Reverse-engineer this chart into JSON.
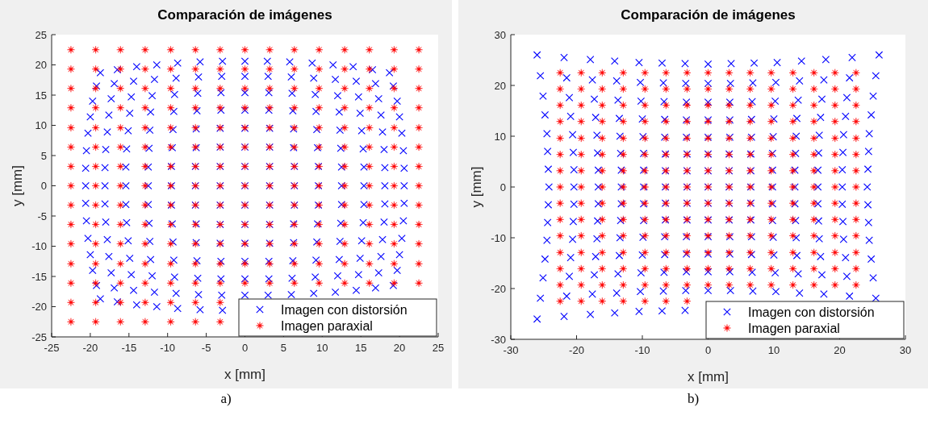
{
  "chart_data": [
    {
      "type": "scatter",
      "title": "Comparación de imágenes",
      "xlabel": "x [mm]",
      "ylabel": "y [mm]",
      "xlim": [
        -25,
        25
      ],
      "ylim": [
        -25,
        25
      ],
      "xticks": [
        -25,
        -20,
        -15,
        -10,
        -5,
        0,
        5,
        10,
        15,
        20,
        25
      ],
      "yticks": [
        -25,
        -20,
        -15,
        -10,
        -5,
        0,
        5,
        10,
        15,
        20,
        25
      ],
      "legend": "bottom right",
      "annotations": [
        "a)"
      ],
      "series": [
        {
          "name": "Imagen con distorsión",
          "color": "#0000ff",
          "marker": "cross",
          "x": [
            -18.7,
            -16.5,
            -14.0,
            -11.4,
            -8.7,
            -5.8,
            -2.9,
            0,
            2.9,
            5.8,
            8.7,
            11.4,
            14.0,
            16.5,
            18.7,
            -19.2,
            -16.9,
            -14.4,
            -11.7,
            -8.9,
            -6.0,
            -3.0,
            0,
            3.0,
            6.0,
            8.9,
            11.7,
            14.4,
            16.9,
            19.2,
            -19.7,
            -17.3,
            -14.7,
            -12.0,
            -9.1,
            -6.1,
            -3.1,
            0,
            3.1,
            6.1,
            9.1,
            12.0,
            14.7,
            17.3,
            19.7,
            -20.0,
            -17.6,
            -14.9,
            -12.2,
            -9.2,
            -6.2,
            -3.1,
            0,
            3.1,
            6.2,
            9.2,
            12.2,
            14.9,
            17.6,
            20.0,
            -20.3,
            -17.8,
            -15.1,
            -12.3,
            -9.3,
            -6.3,
            -3.2,
            0,
            3.2,
            6.3,
            9.3,
            12.3,
            15.1,
            17.8,
            20.3,
            -20.5,
            -18.0,
            -15.3,
            -12.4,
            -9.4,
            -6.3,
            -3.2,
            0,
            3.2,
            6.3,
            9.4,
            12.4,
            15.3,
            18.0,
            20.5,
            -20.6,
            -18.1,
            -15.4,
            -12.5,
            -9.5,
            -6.4,
            -3.2,
            0,
            3.2,
            6.4,
            9.5,
            12.5,
            15.4,
            18.1,
            20.6,
            -20.6,
            -18.1,
            -15.4,
            -12.5,
            -9.5,
            -6.4,
            -3.2,
            0,
            3.2,
            6.4,
            9.5,
            12.5,
            15.4,
            18.1,
            20.6,
            -20.6,
            -18.1,
            -15.4,
            -12.5,
            -9.5,
            -6.4,
            -3.2,
            0,
            3.2,
            6.4,
            9.5,
            12.5,
            15.4,
            18.1,
            20.6,
            -20.5,
            -18.0,
            -15.3,
            -12.4,
            -9.4,
            -6.3,
            -3.2,
            0,
            3.2,
            6.3,
            9.4,
            12.4,
            15.3,
            18.0,
            20.5,
            -20.3,
            -17.8,
            -15.1,
            -12.3,
            -9.3,
            -6.3,
            -3.2,
            0,
            3.2,
            6.3,
            9.3,
            12.3,
            15.1,
            17.8,
            20.3,
            -20.0,
            -17.6,
            -14.9,
            -12.2,
            -9.2,
            -6.2,
            -3.1,
            0,
            3.1,
            6.2,
            9.2,
            12.2,
            14.9,
            17.6,
            20.0,
            -19.7,
            -17.3,
            -14.7,
            -12.0,
            -9.1,
            -6.1,
            -3.1,
            0,
            3.1,
            6.1,
            9.1,
            12.0,
            14.7,
            17.3,
            19.7,
            -19.2,
            -16.9,
            -14.4,
            -11.7,
            -8.9,
            -6.0,
            -3.0,
            0,
            3.0,
            6.0,
            8.9,
            11.7,
            14.4,
            16.9,
            19.2,
            -18.7,
            -16.5,
            -14.0,
            -11.4,
            -8.7,
            -5.8,
            -2.9
          ],
          "values": [
            18.7,
            19.2,
            19.7,
            20.0,
            20.3,
            20.5,
            20.6,
            20.6,
            20.6,
            20.5,
            20.3,
            20.0,
            19.7,
            19.2,
            18.7,
            16.5,
            16.9,
            17.3,
            17.6,
            17.8,
            18.0,
            18.1,
            18.1,
            18.1,
            18.0,
            17.8,
            17.6,
            17.3,
            16.9,
            16.5,
            14.0,
            14.4,
            14.7,
            14.9,
            15.1,
            15.3,
            15.4,
            15.4,
            15.4,
            15.3,
            15.1,
            14.9,
            14.7,
            14.4,
            14.0,
            11.4,
            11.7,
            12.0,
            12.2,
            12.3,
            12.4,
            12.5,
            12.5,
            12.5,
            12.4,
            12.3,
            12.2,
            12.0,
            11.7,
            11.4,
            8.7,
            8.9,
            9.1,
            9.2,
            9.3,
            9.4,
            9.5,
            9.5,
            9.5,
            9.4,
            9.3,
            9.2,
            9.1,
            8.9,
            8.7,
            5.8,
            6.0,
            6.1,
            6.2,
            6.3,
            6.3,
            6.4,
            6.4,
            6.4,
            6.3,
            6.3,
            6.2,
            6.1,
            6.0,
            5.8,
            2.9,
            3.0,
            3.1,
            3.1,
            3.2,
            3.2,
            3.2,
            3.2,
            3.2,
            3.2,
            3.2,
            3.1,
            3.1,
            3.0,
            2.9,
            0,
            0,
            0,
            0,
            0,
            0,
            0,
            0,
            0,
            0,
            0,
            0,
            0,
            0,
            0,
            -2.9,
            -3.0,
            -3.1,
            -3.1,
            -3.2,
            -3.2,
            -3.2,
            -3.2,
            -3.2,
            -3.2,
            -3.2,
            -3.1,
            -3.1,
            -3.0,
            -2.9,
            -5.8,
            -6.0,
            -6.1,
            -6.2,
            -6.3,
            -6.3,
            -6.4,
            -6.4,
            -6.4,
            -6.3,
            -6.3,
            -6.2,
            -6.1,
            -6.0,
            -5.8,
            -8.7,
            -8.9,
            -9.1,
            -9.2,
            -9.3,
            -9.4,
            -9.5,
            -9.5,
            -9.5,
            -9.4,
            -9.3,
            -9.2,
            -9.1,
            -8.9,
            -8.7,
            -11.4,
            -11.7,
            -12.0,
            -12.2,
            -12.3,
            -12.4,
            -12.5,
            -12.5,
            -12.5,
            -12.4,
            -12.3,
            -12.2,
            -12.0,
            -11.7,
            -11.4,
            -14.0,
            -14.4,
            -14.7,
            -14.9,
            -15.1,
            -15.3,
            -15.4,
            -15.4,
            -15.4,
            -15.3,
            -15.1,
            -14.9,
            -14.7,
            -14.4,
            -14.0,
            -16.5,
            -16.9,
            -17.3,
            -17.6,
            -17.8,
            -18.0,
            -18.1,
            -18.1,
            -18.1,
            -18.0,
            -17.8,
            -17.6,
            -17.3,
            -16.9,
            -16.5,
            -18.7,
            -19.2,
            -19.7,
            -20.0,
            -20.3,
            -20.5,
            -20.6
          ]
        },
        {
          "name": "Imagen paraxial",
          "color": "#ff0000",
          "marker": "star",
          "x": [
            -22.5,
            -19.3,
            -16.1,
            -12.9,
            -9.6,
            -6.4,
            -3.2,
            0,
            3.2,
            6.4,
            9.6,
            12.9,
            16.1,
            19.3,
            22.5,
            -22.5,
            -19.3,
            -16.1,
            -12.9,
            -9.6,
            -6.4,
            -3.2,
            0,
            3.2,
            6.4,
            9.6,
            12.9,
            16.1,
            19.3,
            22.5,
            -22.5,
            -19.3,
            -16.1,
            -12.9,
            -9.6,
            -6.4,
            -3.2,
            0,
            3.2,
            6.4,
            9.6,
            12.9,
            16.1,
            19.3,
            22.5,
            -22.5,
            -19.3,
            -16.1,
            -12.9,
            -9.6,
            -6.4,
            -3.2,
            0,
            3.2,
            6.4,
            9.6,
            12.9,
            16.1,
            19.3,
            22.5,
            -22.5,
            -19.3,
            -16.1,
            -12.9,
            -9.6,
            -6.4,
            -3.2,
            0,
            3.2,
            6.4,
            9.6,
            12.9,
            16.1,
            19.3,
            22.5,
            -22.5,
            -19.3,
            -16.1,
            -12.9,
            -9.6,
            -6.4,
            -3.2,
            0,
            3.2,
            6.4,
            9.6,
            12.9,
            16.1,
            19.3,
            22.5,
            -22.5,
            -19.3,
            -16.1,
            -12.9,
            -9.6,
            -6.4,
            -3.2,
            0,
            3.2,
            6.4,
            9.6,
            12.9,
            16.1,
            19.3,
            22.5,
            -22.5,
            -19.3,
            -16.1,
            -12.9,
            -9.6,
            -6.4,
            -3.2,
            0,
            3.2,
            6.4,
            9.6,
            12.9,
            16.1,
            19.3,
            22.5,
            -22.5,
            -19.3,
            -16.1,
            -12.9,
            -9.6,
            -6.4,
            -3.2,
            0,
            3.2,
            6.4,
            9.6,
            12.9,
            16.1,
            19.3,
            22.5,
            -22.5,
            -19.3,
            -16.1,
            -12.9,
            -9.6,
            -6.4,
            -3.2,
            0,
            3.2,
            6.4,
            9.6,
            12.9,
            16.1,
            19.3,
            22.5,
            -22.5,
            -19.3,
            -16.1,
            -12.9,
            -9.6,
            -6.4,
            -3.2,
            0,
            3.2,
            6.4,
            9.6,
            12.9,
            16.1,
            19.3,
            22.5,
            -22.5,
            -19.3,
            -16.1,
            -12.9,
            -9.6,
            -6.4,
            -3.2,
            0,
            3.2,
            6.4,
            9.6,
            12.9,
            16.1,
            19.3,
            22.5,
            -22.5,
            -19.3,
            -16.1,
            -12.9,
            -9.6,
            -6.4,
            -3.2,
            0,
            3.2,
            6.4,
            9.6,
            12.9,
            16.1,
            19.3,
            22.5,
            -22.5,
            -19.3,
            -16.1,
            -12.9,
            -9.6,
            -6.4,
            -3.2,
            -22.5,
            -19.3,
            -16.1,
            -12.9,
            -9.6,
            -6.4,
            -3.2
          ],
          "values": [
            22.5,
            22.5,
            22.5,
            22.5,
            22.5,
            22.5,
            22.5,
            22.5,
            22.5,
            22.5,
            22.5,
            22.5,
            22.5,
            22.5,
            22.5,
            19.3,
            19.3,
            19.3,
            19.3,
            19.3,
            19.3,
            19.3,
            19.3,
            19.3,
            19.3,
            19.3,
            19.3,
            19.3,
            19.3,
            19.3,
            16.1,
            16.1,
            16.1,
            16.1,
            16.1,
            16.1,
            16.1,
            16.1,
            16.1,
            16.1,
            16.1,
            16.1,
            16.1,
            16.1,
            16.1,
            12.9,
            12.9,
            12.9,
            12.9,
            12.9,
            12.9,
            12.9,
            12.9,
            12.9,
            12.9,
            12.9,
            12.9,
            12.9,
            12.9,
            12.9,
            9.6,
            9.6,
            9.6,
            9.6,
            9.6,
            9.6,
            9.6,
            9.6,
            9.6,
            9.6,
            9.6,
            9.6,
            9.6,
            9.6,
            9.6,
            6.4,
            6.4,
            6.4,
            6.4,
            6.4,
            6.4,
            6.4,
            6.4,
            6.4,
            6.4,
            6.4,
            6.4,
            6.4,
            6.4,
            6.4,
            3.2,
            3.2,
            3.2,
            3.2,
            3.2,
            3.2,
            3.2,
            3.2,
            3.2,
            3.2,
            3.2,
            3.2,
            3.2,
            3.2,
            3.2,
            0,
            0,
            0,
            0,
            0,
            0,
            0,
            0,
            0,
            0,
            0,
            0,
            0,
            0,
            0,
            -3.2,
            -3.2,
            -3.2,
            -3.2,
            -3.2,
            -3.2,
            -3.2,
            -3.2,
            -3.2,
            -3.2,
            -3.2,
            -3.2,
            -3.2,
            -3.2,
            -3.2,
            -6.4,
            -6.4,
            -6.4,
            -6.4,
            -6.4,
            -6.4,
            -6.4,
            -6.4,
            -6.4,
            -6.4,
            -6.4,
            -6.4,
            -6.4,
            -6.4,
            -6.4,
            -9.6,
            -9.6,
            -9.6,
            -9.6,
            -9.6,
            -9.6,
            -9.6,
            -9.6,
            -9.6,
            -9.6,
            -9.6,
            -9.6,
            -9.6,
            -9.6,
            -9.6,
            -12.9,
            -12.9,
            -12.9,
            -12.9,
            -12.9,
            -12.9,
            -12.9,
            -12.9,
            -12.9,
            -12.9,
            -12.9,
            -12.9,
            -12.9,
            -12.9,
            -12.9,
            -16.1,
            -16.1,
            -16.1,
            -16.1,
            -16.1,
            -16.1,
            -16.1,
            -16.1,
            -16.1,
            -16.1,
            -16.1,
            -16.1,
            -16.1,
            -16.1,
            -16.1,
            -19.3,
            -19.3,
            -19.3,
            -19.3,
            -19.3,
            -19.3,
            -19.3,
            -22.5,
            -22.5,
            -22.5,
            -22.5,
            -22.5,
            -22.5,
            -22.5
          ]
        }
      ]
    },
    {
      "type": "scatter",
      "title": "Comparación de imágenes",
      "xlabel": "x [mm]",
      "ylabel": "y [mm]",
      "xlim": [
        -30,
        30
      ],
      "ylim": [
        -30,
        30
      ],
      "xticks": [
        -30,
        -20,
        -10,
        0,
        10,
        20,
        30
      ],
      "yticks": [
        -30,
        -20,
        -10,
        0,
        10,
        20,
        30
      ],
      "legend": "bottom right",
      "annotations": [
        "b)"
      ],
      "series": [
        {
          "name": "Imagen con distorsión",
          "color": "#0000ff",
          "marker": "cross",
          "x": [
            -26.0,
            -21.9,
            -17.9,
            -14.2,
            -10.5,
            -7.0,
            -3.5,
            0,
            3.5,
            7.0,
            10.5,
            14.2,
            17.9,
            21.9,
            26.0,
            -25.5,
            -21.5,
            -17.6,
            -13.9,
            -10.3,
            -6.8,
            -3.4,
            0,
            3.4,
            6.8,
            10.3,
            13.9,
            17.6,
            21.5,
            25.5,
            -25.1,
            -21.1,
            -17.3,
            -13.7,
            -10.2,
            -6.7,
            -3.3,
            0,
            3.3,
            6.7,
            10.2,
            13.7,
            17.3,
            21.1,
            25.1,
            -24.8,
            -20.9,
            -17.1,
            -13.5,
            -10.0,
            -6.6,
            -3.3,
            0,
            3.3,
            6.6,
            10.0,
            13.5,
            17.1,
            20.9,
            24.8,
            -24.5,
            -20.6,
            -16.9,
            -13.4,
            -9.9,
            -6.6,
            -3.3,
            0,
            3.3,
            6.6,
            9.9,
            13.4,
            16.9,
            20.6,
            24.5,
            -24.4,
            -20.5,
            -16.8,
            -13.3,
            -9.8,
            -6.5,
            -3.2,
            0,
            3.2,
            6.5,
            9.8,
            13.3,
            16.8,
            20.5,
            24.4,
            -24.3,
            -20.4,
            -16.7,
            -13.2,
            -9.8,
            -6.5,
            -3.2,
            0,
            3.2,
            6.5,
            9.8,
            13.2,
            16.7,
            20.4,
            24.3,
            -24.2,
            -20.4,
            -16.7,
            -13.2,
            -9.8,
            -6.5,
            -3.2,
            0,
            3.2,
            6.5,
            9.8,
            13.2,
            16.7,
            20.4,
            24.2,
            -24.3,
            -20.4,
            -16.7,
            -13.2,
            -9.8,
            -6.5,
            -3.2,
            0,
            3.2,
            6.5,
            9.8,
            13.2,
            16.7,
            20.4,
            24.3,
            -24.4,
            -20.5,
            -16.8,
            -13.3,
            -9.8,
            -6.5,
            -3.2,
            0,
            3.2,
            6.5,
            9.8,
            13.3,
            16.8,
            20.5,
            24.4,
            -24.5,
            -20.6,
            -16.9,
            -13.4,
            -9.9,
            -6.6,
            -3.3,
            0,
            3.3,
            6.6,
            9.9,
            13.4,
            16.9,
            20.6,
            24.5,
            -24.8,
            -20.9,
            -17.1,
            -13.5,
            -10.0,
            -6.6,
            -3.3,
            0,
            3.3,
            6.6,
            10.0,
            13.5,
            17.1,
            20.9,
            24.8,
            -25.1,
            -21.1,
            -17.3,
            -13.7,
            -10.2,
            -6.7,
            -3.3,
            0,
            3.3,
            6.7,
            10.2,
            13.7,
            17.3,
            21.1,
            25.1,
            -25.5,
            -21.5,
            -17.6,
            -13.9,
            -10.3,
            -6.8,
            -3.4,
            0,
            3.4,
            6.8,
            10.3,
            13.9,
            17.6,
            21.5,
            25.5,
            -26.0,
            -21.9,
            -17.9,
            -14.2,
            -10.5,
            -7.0,
            -3.5
          ],
          "values": [
            26.0,
            25.5,
            25.1,
            24.8,
            24.5,
            24.4,
            24.3,
            24.2,
            24.3,
            24.4,
            24.5,
            24.8,
            25.1,
            25.5,
            26.0,
            21.9,
            21.5,
            21.1,
            20.9,
            20.6,
            20.5,
            20.4,
            20.4,
            20.4,
            20.5,
            20.6,
            20.9,
            21.1,
            21.5,
            21.9,
            17.9,
            17.6,
            17.3,
            17.1,
            16.9,
            16.8,
            16.7,
            16.7,
            16.7,
            16.8,
            16.9,
            17.1,
            17.3,
            17.6,
            17.9,
            14.2,
            13.9,
            13.7,
            13.5,
            13.4,
            13.3,
            13.2,
            13.2,
            13.2,
            13.3,
            13.4,
            13.5,
            13.7,
            13.9,
            14.2,
            10.5,
            10.3,
            10.2,
            10.0,
            9.9,
            9.8,
            9.8,
            9.8,
            9.8,
            9.8,
            9.9,
            10.0,
            10.2,
            10.3,
            10.5,
            7.0,
            6.8,
            6.7,
            6.6,
            6.6,
            6.5,
            6.5,
            6.5,
            6.5,
            6.5,
            6.6,
            6.6,
            6.7,
            6.8,
            7.0,
            3.5,
            3.4,
            3.3,
            3.3,
            3.3,
            3.2,
            3.2,
            3.2,
            3.2,
            3.2,
            3.3,
            3.3,
            3.3,
            3.4,
            3.5,
            0,
            0,
            0,
            0,
            0,
            0,
            0,
            0,
            0,
            0,
            0,
            0,
            0,
            0,
            0,
            -3.5,
            -3.4,
            -3.3,
            -3.3,
            -3.3,
            -3.2,
            -3.2,
            -3.2,
            -3.2,
            -3.2,
            -3.3,
            -3.3,
            -3.3,
            -3.4,
            -3.5,
            -7.0,
            -6.8,
            -6.7,
            -6.6,
            -6.6,
            -6.5,
            -6.5,
            -6.5,
            -6.5,
            -6.5,
            -6.6,
            -6.6,
            -6.7,
            -6.8,
            -7.0,
            -10.5,
            -10.3,
            -10.2,
            -10.0,
            -9.9,
            -9.8,
            -9.8,
            -9.8,
            -9.8,
            -9.8,
            -9.9,
            -10.0,
            -10.2,
            -10.3,
            -10.5,
            -14.2,
            -13.9,
            -13.7,
            -13.5,
            -13.4,
            -13.3,
            -13.2,
            -13.2,
            -13.2,
            -13.3,
            -13.4,
            -13.5,
            -13.7,
            -13.9,
            -14.2,
            -17.9,
            -17.6,
            -17.3,
            -17.1,
            -16.9,
            -16.8,
            -16.7,
            -16.7,
            -16.7,
            -16.8,
            -16.9,
            -17.1,
            -17.3,
            -17.6,
            -17.9,
            -21.9,
            -21.5,
            -21.1,
            -20.9,
            -20.6,
            -20.5,
            -20.4,
            -20.4,
            -20.4,
            -20.5,
            -20.6,
            -20.9,
            -21.1,
            -21.5,
            -21.9,
            -26.0,
            -25.5,
            -25.1,
            -24.8,
            -24.5,
            -24.4,
            -24.3
          ]
        },
        {
          "name": "Imagen paraxial",
          "color": "#ff0000",
          "marker": "star",
          "x": [
            -22.5,
            -19.3,
            -16.1,
            -12.9,
            -9.6,
            -6.4,
            -3.2,
            0,
            3.2,
            6.4,
            9.6,
            12.9,
            16.1,
            19.3,
            22.5,
            -22.5,
            -19.3,
            -16.1,
            -12.9,
            -9.6,
            -6.4,
            -3.2,
            0,
            3.2,
            6.4,
            9.6,
            12.9,
            16.1,
            19.3,
            22.5,
            -22.5,
            -19.3,
            -16.1,
            -12.9,
            -9.6,
            -6.4,
            -3.2,
            0,
            3.2,
            6.4,
            9.6,
            12.9,
            16.1,
            19.3,
            22.5,
            -22.5,
            -19.3,
            -16.1,
            -12.9,
            -9.6,
            -6.4,
            -3.2,
            0,
            3.2,
            6.4,
            9.6,
            12.9,
            16.1,
            19.3,
            22.5,
            -22.5,
            -19.3,
            -16.1,
            -12.9,
            -9.6,
            -6.4,
            -3.2,
            0,
            3.2,
            6.4,
            9.6,
            12.9,
            16.1,
            19.3,
            22.5,
            -22.5,
            -19.3,
            -16.1,
            -12.9,
            -9.6,
            -6.4,
            -3.2,
            0,
            3.2,
            6.4,
            9.6,
            12.9,
            16.1,
            19.3,
            22.5,
            -22.5,
            -19.3,
            -16.1,
            -12.9,
            -9.6,
            -6.4,
            -3.2,
            0,
            3.2,
            6.4,
            9.6,
            12.9,
            16.1,
            19.3,
            22.5,
            -22.5,
            -19.3,
            -16.1,
            -12.9,
            -9.6,
            -6.4,
            -3.2,
            0,
            3.2,
            6.4,
            9.6,
            12.9,
            16.1,
            19.3,
            22.5,
            -22.5,
            -19.3,
            -16.1,
            -12.9,
            -9.6,
            -6.4,
            -3.2,
            0,
            3.2,
            6.4,
            9.6,
            12.9,
            16.1,
            19.3,
            22.5,
            -22.5,
            -19.3,
            -16.1,
            -12.9,
            -9.6,
            -6.4,
            -3.2,
            0,
            3.2,
            6.4,
            9.6,
            12.9,
            16.1,
            19.3,
            22.5,
            -22.5,
            -19.3,
            -16.1,
            -12.9,
            -9.6,
            -6.4,
            -3.2,
            0,
            3.2,
            6.4,
            9.6,
            12.9,
            16.1,
            19.3,
            22.5,
            -22.5,
            -19.3,
            -16.1,
            -12.9,
            -9.6,
            -6.4,
            -3.2,
            0,
            3.2,
            6.4,
            9.6,
            12.9,
            16.1,
            19.3,
            22.5,
            -22.5,
            -19.3,
            -16.1,
            -12.9,
            -9.6,
            -6.4,
            -3.2,
            0,
            3.2,
            6.4,
            9.6,
            12.9,
            16.1,
            19.3,
            22.5,
            -22.5,
            -19.3,
            -16.1,
            -12.9,
            -9.6,
            -6.4,
            -3.2,
            0,
            3.2,
            6.4,
            9.6,
            12.9,
            16.1,
            19.3,
            22.5,
            -22.5,
            -19.3,
            -16.1,
            -12.9,
            -9.6,
            -6.4,
            -3.2
          ],
          "values": [
            22.5,
            22.5,
            22.5,
            22.5,
            22.5,
            22.5,
            22.5,
            22.5,
            22.5,
            22.5,
            22.5,
            22.5,
            22.5,
            22.5,
            22.5,
            19.3,
            19.3,
            19.3,
            19.3,
            19.3,
            19.3,
            19.3,
            19.3,
            19.3,
            19.3,
            19.3,
            19.3,
            19.3,
            19.3,
            19.3,
            16.1,
            16.1,
            16.1,
            16.1,
            16.1,
            16.1,
            16.1,
            16.1,
            16.1,
            16.1,
            16.1,
            16.1,
            16.1,
            16.1,
            16.1,
            12.9,
            12.9,
            12.9,
            12.9,
            12.9,
            12.9,
            12.9,
            12.9,
            12.9,
            12.9,
            12.9,
            12.9,
            12.9,
            12.9,
            12.9,
            9.6,
            9.6,
            9.6,
            9.6,
            9.6,
            9.6,
            9.6,
            9.6,
            9.6,
            9.6,
            9.6,
            9.6,
            9.6,
            9.6,
            9.6,
            6.4,
            6.4,
            6.4,
            6.4,
            6.4,
            6.4,
            6.4,
            6.4,
            6.4,
            6.4,
            6.4,
            6.4,
            6.4,
            6.4,
            6.4,
            3.2,
            3.2,
            3.2,
            3.2,
            3.2,
            3.2,
            3.2,
            3.2,
            3.2,
            3.2,
            3.2,
            3.2,
            3.2,
            3.2,
            3.2,
            0,
            0,
            0,
            0,
            0,
            0,
            0,
            0,
            0,
            0,
            0,
            0,
            0,
            0,
            0,
            -3.2,
            -3.2,
            -3.2,
            -3.2,
            -3.2,
            -3.2,
            -3.2,
            -3.2,
            -3.2,
            -3.2,
            -3.2,
            -3.2,
            -3.2,
            -3.2,
            -3.2,
            -6.4,
            -6.4,
            -6.4,
            -6.4,
            -6.4,
            -6.4,
            -6.4,
            -6.4,
            -6.4,
            -6.4,
            -6.4,
            -6.4,
            -6.4,
            -6.4,
            -6.4,
            -9.6,
            -9.6,
            -9.6,
            -9.6,
            -9.6,
            -9.6,
            -9.6,
            -9.6,
            -9.6,
            -9.6,
            -9.6,
            -9.6,
            -9.6,
            -9.6,
            -9.6,
            -12.9,
            -12.9,
            -12.9,
            -12.9,
            -12.9,
            -12.9,
            -12.9,
            -12.9,
            -12.9,
            -12.9,
            -12.9,
            -12.9,
            -12.9,
            -12.9,
            -12.9,
            -16.1,
            -16.1,
            -16.1,
            -16.1,
            -16.1,
            -16.1,
            -16.1,
            -16.1,
            -16.1,
            -16.1,
            -16.1,
            -16.1,
            -16.1,
            -16.1,
            -16.1,
            -19.3,
            -19.3,
            -19.3,
            -19.3,
            -19.3,
            -19.3,
            -19.3,
            -19.3,
            -19.3,
            -19.3,
            -19.3,
            -19.3,
            -19.3,
            -19.3,
            -19.3,
            -22.5,
            -22.5,
            -22.5,
            -22.5,
            -22.5,
            -22.5,
            -22.5
          ]
        }
      ]
    }
  ]
}
